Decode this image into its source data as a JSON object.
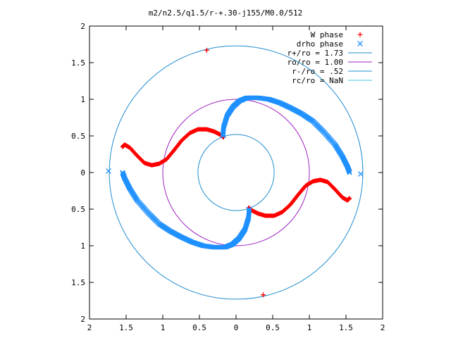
{
  "chart_data": {
    "type": "scatter",
    "title": "m2/n2.5/q1.5/r-+.30-j155/M0.0/512",
    "xlim": [
      -2,
      2
    ],
    "ylim": [
      -2,
      2
    ],
    "x_ticks": [
      "2",
      "1.5",
      "1",
      "0.5",
      "0",
      "0.5",
      "1",
      "1.5",
      "2"
    ],
    "y_ticks": [
      "2",
      "1.5",
      "1",
      "0.5",
      "0",
      "0.5",
      "1",
      "1.5",
      "2"
    ],
    "grid": false,
    "legend_position": "top-right",
    "colors": {
      "w_phase": "#ff0000",
      "drho_phase": "#1e90ff",
      "r_plus": "#1f8ccf",
      "r_o": "#a020c0",
      "r_minus": "#1f8ccf",
      "r_c": "#40c8e0"
    },
    "series": [
      {
        "name": "W phase",
        "marker": "plus",
        "color": "#ff0000",
        "curves": [
          [
            [
              -0.17,
              0.48
            ],
            [
              -0.22,
              0.52
            ],
            [
              -0.3,
              0.56
            ],
            [
              -0.4,
              0.59
            ],
            [
              -0.52,
              0.59
            ],
            [
              -0.63,
              0.54
            ],
            [
              -0.74,
              0.44
            ],
            [
              -0.85,
              0.3
            ],
            [
              -0.95,
              0.18
            ],
            [
              -1.05,
              0.12
            ],
            [
              -1.15,
              0.1
            ],
            [
              -1.25,
              0.13
            ],
            [
              -1.35,
              0.23
            ],
            [
              -1.45,
              0.34
            ],
            [
              -1.52,
              0.38
            ],
            [
              -1.55,
              0.35
            ]
          ],
          [
            [
              0.17,
              -0.48
            ],
            [
              0.22,
              -0.52
            ],
            [
              0.3,
              -0.56
            ],
            [
              0.4,
              -0.59
            ],
            [
              0.52,
              -0.59
            ],
            [
              0.63,
              -0.54
            ],
            [
              0.74,
              -0.44
            ],
            [
              0.85,
              -0.3
            ],
            [
              0.95,
              -0.18
            ],
            [
              1.05,
              -0.12
            ],
            [
              1.15,
              -0.1
            ],
            [
              1.25,
              -0.13
            ],
            [
              1.35,
              -0.23
            ],
            [
              1.45,
              -0.34
            ],
            [
              1.52,
              -0.38
            ],
            [
              1.55,
              -0.35
            ]
          ]
        ],
        "points": [
          [
            -0.4,
            1.67
          ],
          [
            0.37,
            -1.67
          ]
        ]
      },
      {
        "name": "drho phase",
        "marker": "cross",
        "color": "#1e90ff",
        "curves": [
          [
            [
              -0.18,
              0.5
            ],
            [
              -0.17,
              0.62
            ],
            [
              -0.12,
              0.78
            ],
            [
              -0.04,
              0.9
            ],
            [
              0.05,
              0.98
            ],
            [
              0.15,
              1.02
            ],
            [
              0.3,
              1.02
            ],
            [
              0.45,
              1.0
            ],
            [
              0.6,
              0.95
            ],
            [
              0.75,
              0.88
            ],
            [
              0.9,
              0.8
            ],
            [
              1.05,
              0.7
            ],
            [
              1.2,
              0.55
            ],
            [
              1.35,
              0.38
            ],
            [
              1.45,
              0.22
            ],
            [
              1.52,
              0.08
            ],
            [
              1.55,
              0.0
            ]
          ],
          [
            [
              0.18,
              -0.5
            ],
            [
              0.17,
              -0.62
            ],
            [
              0.12,
              -0.78
            ],
            [
              0.04,
              -0.9
            ],
            [
              -0.05,
              -0.98
            ],
            [
              -0.15,
              -1.02
            ],
            [
              -0.3,
              -1.02
            ],
            [
              -0.45,
              -1.0
            ],
            [
              -0.6,
              -0.95
            ],
            [
              -0.75,
              -0.88
            ],
            [
              -0.9,
              -0.8
            ],
            [
              -1.05,
              -0.7
            ],
            [
              -1.2,
              -0.55
            ],
            [
              -1.35,
              -0.38
            ],
            [
              -1.45,
              -0.22
            ],
            [
              -1.52,
              -0.08
            ],
            [
              -1.55,
              0.0
            ]
          ]
        ],
        "points": [
          [
            1.7,
            -0.02
          ],
          [
            -1.74,
            0.02
          ]
        ]
      },
      {
        "name": "r+/ro = 1.73",
        "kind": "circle",
        "radius": 1.73,
        "color": "#1f8ccf"
      },
      {
        "name": "ro/ro = 1.00",
        "kind": "circle",
        "radius": 1.0,
        "color": "#a020c0"
      },
      {
        "name": "r-/ro = .52",
        "kind": "circle",
        "radius": 0.52,
        "color": "#1f8ccf"
      },
      {
        "name": "rc/ro = NaN",
        "kind": "circle",
        "radius": null,
        "color": "#40c8e0"
      }
    ]
  }
}
